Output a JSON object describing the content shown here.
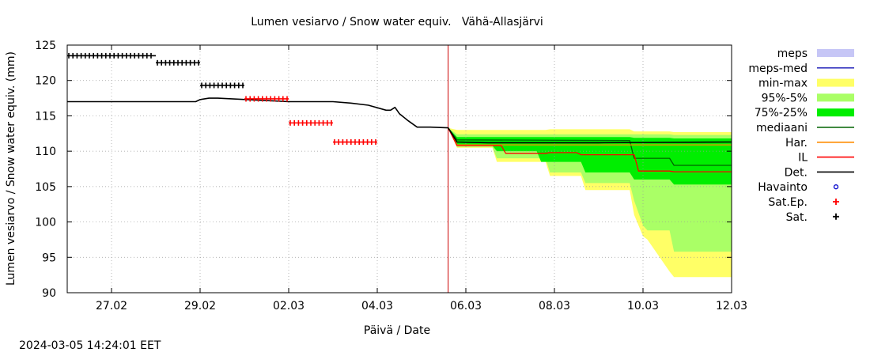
{
  "chart_data": {
    "type": "line",
    "title": "Lumen vesiarvo / Snow water equiv.   Vähä-Allasjärvi",
    "xlabel": "Päivä / Date",
    "ylabel": "Lumen vesiarvo / Snow water equiv. (mm)",
    "x_unit": "days, 2024-02-26 .. 2024-03-12",
    "xlim": [
      0,
      15
    ],
    "ylim": [
      90,
      125
    ],
    "yticks": [
      90,
      95,
      100,
      105,
      110,
      115,
      120,
      125
    ],
    "xticks": [
      {
        "x": 1,
        "label": "27.02"
      },
      {
        "x": 3,
        "label": "29.02"
      },
      {
        "x": 5,
        "label": "02.03"
      },
      {
        "x": 7,
        "label": "04.03"
      },
      {
        "x": 9,
        "label": "06.03"
      },
      {
        "x": 11,
        "label": "08.03"
      },
      {
        "x": 13,
        "label": "10.03"
      },
      {
        "x": 15,
        "label": "12.03"
      }
    ],
    "forecast_start": 8.6,
    "legend_position": "right",
    "legend": [
      {
        "label": "meps",
        "kind": "box",
        "color": "#c6c6f6"
      },
      {
        "label": "meps-med",
        "kind": "line",
        "color": "#3a3ac0"
      },
      {
        "label": "min-max",
        "kind": "box",
        "color": "#ffff66"
      },
      {
        "label": "95%-5%",
        "kind": "box",
        "color": "#aaff66"
      },
      {
        "label": "75%-25%",
        "kind": "box",
        "color": "#00ee00"
      },
      {
        "label": "mediaani",
        "kind": "line",
        "color": "#006400"
      },
      {
        "label": "Har.",
        "kind": "line",
        "color": "#ff8c00"
      },
      {
        "label": "IL",
        "kind": "line",
        "color": "#ff0000"
      },
      {
        "label": "Det.",
        "kind": "line",
        "color": "#000000"
      },
      {
        "label": "Havainto",
        "kind": "circle",
        "color": "#0000cc"
      },
      {
        "label": "Sat.Ep.",
        "kind": "plus",
        "color": "#ff0000"
      },
      {
        "label": "Sat.",
        "kind": "plus",
        "color": "#000000"
      }
    ],
    "series": [
      {
        "name": "Det.",
        "color": "#000000",
        "x": [
          0,
          2.9,
          3.0,
          3.2,
          3.4,
          5.0,
          6.0,
          6.4,
          6.8,
          7.2,
          7.3,
          7.4,
          7.5,
          7.7,
          7.9,
          8.2,
          8.6,
          8.8,
          9.5,
          12.0,
          15.0
        ],
        "y": [
          117.0,
          117.0,
          117.3,
          117.5,
          117.5,
          117.0,
          117.0,
          116.8,
          116.5,
          115.8,
          115.8,
          116.2,
          115.3,
          114.3,
          113.4,
          113.4,
          113.3,
          111.3,
          111.2,
          111.2,
          111.3
        ]
      },
      {
        "name": "mediaani",
        "color": "#006400",
        "x": [
          8.6,
          8.8,
          12.7,
          12.8,
          13.6,
          13.7,
          15.0
        ],
        "y": [
          113.3,
          111.6,
          111.5,
          109.0,
          109.0,
          108.0,
          108.0
        ]
      },
      {
        "name": "Har.",
        "color": "#ff8c00",
        "x": [
          8.6,
          8.8,
          15.0
        ],
        "y": [
          113.3,
          110.9,
          110.9
        ]
      },
      {
        "name": "IL",
        "color": "#ff0000",
        "x": [
          8.6,
          8.8,
          9.8,
          9.9,
          10.8,
          10.9,
          11.5,
          11.6,
          12.8,
          12.9,
          13.6,
          13.7,
          15.0
        ],
        "y": [
          113.3,
          110.8,
          110.8,
          109.7,
          109.7,
          109.8,
          109.8,
          109.5,
          109.5,
          107.2,
          107.2,
          107.1,
          107.1
        ]
      },
      {
        "name": "Sat.",
        "color": "#000000",
        "marker": "plus",
        "segments": [
          {
            "x0": 0.0,
            "x1": 2.0,
            "y": 123.5
          },
          {
            "x0": 2.0,
            "x1": 3.0,
            "y": 122.5
          },
          {
            "x0": 3.0,
            "x1": 4.0,
            "y": 119.3
          }
        ]
      },
      {
        "name": "Sat.Ep.",
        "color": "#ff0000",
        "marker": "plus",
        "segments": [
          {
            "x0": 4.0,
            "x1": 5.0,
            "y": 117.4
          },
          {
            "x0": 5.0,
            "x1": 6.0,
            "y": 114.0
          },
          {
            "x0": 6.0,
            "x1": 7.0,
            "y": 111.3
          }
        ]
      }
    ],
    "bands": [
      {
        "name": "min-max",
        "color": "#ffff66",
        "x": [
          8.6,
          8.8,
          9.6,
          9.7,
          10.8,
          10.9,
          11.6,
          11.7,
          12.7,
          12.8,
          13.0,
          13.1,
          13.6,
          13.7,
          15.0
        ],
        "lo": [
          113.3,
          110.5,
          110.5,
          108.5,
          108.5,
          106.5,
          106.5,
          104.5,
          104.5,
          101.0,
          98.0,
          97.5,
          93.0,
          92.2,
          92.2
        ],
        "hi": [
          113.3,
          113.0,
          113.0,
          113.0,
          113.0,
          113.1,
          113.1,
          113.1,
          113.1,
          112.8,
          112.8,
          112.8,
          112.8,
          112.7,
          112.7
        ]
      },
      {
        "name": "95%-5%",
        "color": "#aaff66",
        "x": [
          8.6,
          8.8,
          9.6,
          9.7,
          10.8,
          10.9,
          11.6,
          11.7,
          12.7,
          12.8,
          13.0,
          13.1,
          13.6,
          13.7,
          15.0
        ],
        "lo": [
          113.3,
          110.6,
          110.6,
          109.0,
          109.0,
          107.0,
          107.0,
          105.5,
          105.5,
          103.0,
          99.5,
          98.8,
          98.8,
          95.8,
          95.8
        ],
        "hi": [
          113.3,
          112.4,
          112.4,
          112.4,
          112.4,
          112.4,
          112.4,
          112.4,
          112.4,
          112.4,
          112.4,
          112.4,
          112.4,
          112.3,
          112.3
        ]
      },
      {
        "name": "75%-25%",
        "color": "#00ee00",
        "x": [
          8.6,
          8.8,
          9.6,
          9.7,
          10.6,
          10.7,
          11.6,
          11.7,
          12.7,
          12.8,
          13.6,
          13.7,
          15.0
        ],
        "lo": [
          113.3,
          110.8,
          110.8,
          110.0,
          110.0,
          108.5,
          108.5,
          107.0,
          107.0,
          106.0,
          106.0,
          105.3,
          105.3
        ],
        "hi": [
          113.3,
          112.0,
          112.0,
          112.0,
          112.0,
          112.0,
          112.0,
          112.0,
          112.0,
          111.9,
          111.9,
          111.8,
          111.8
        ]
      }
    ]
  },
  "footer": {
    "timestamp": "2024-03-05 14:24:01 EET"
  }
}
